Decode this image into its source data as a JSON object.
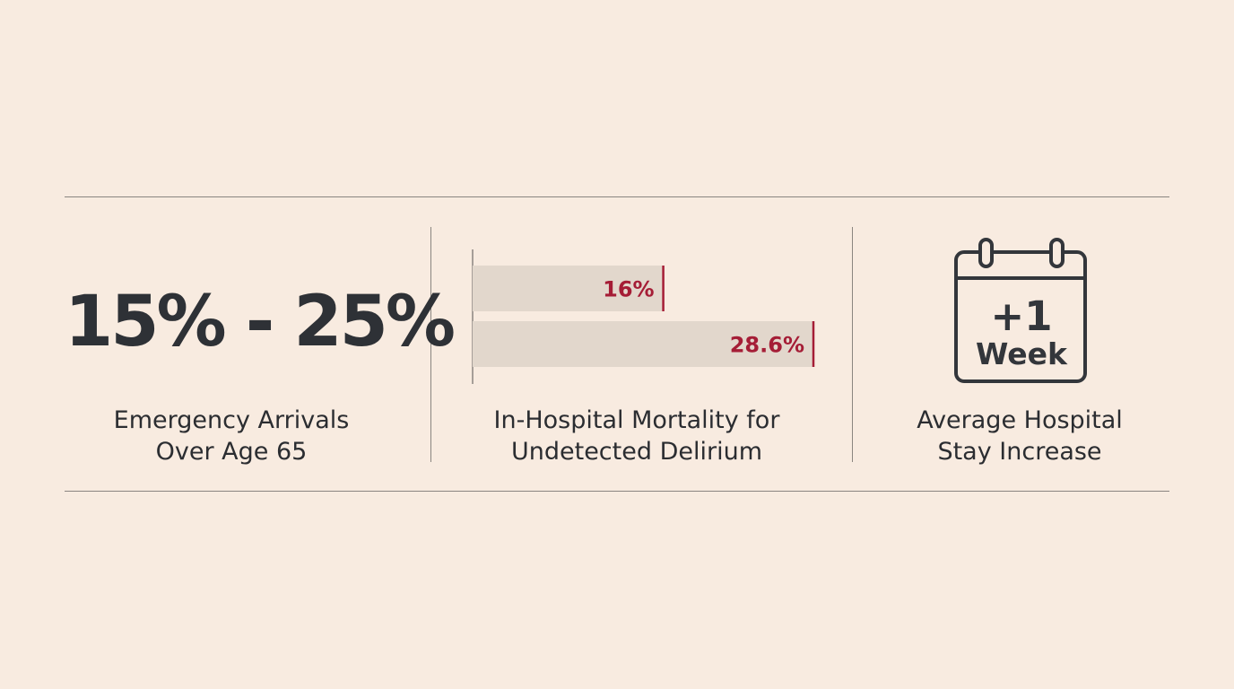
{
  "stats": [
    {
      "value": "15% - 25%",
      "caption_line1": "Emergency Arrivals",
      "caption_line2": "Over Age 65"
    },
    {
      "caption_line1": "In-Hospital Mortality for",
      "caption_line2": "Undetected Delirium"
    },
    {
      "calendar_line1": "+1",
      "calendar_line2": "Week",
      "icon": "calendar-icon",
      "caption_line1": "Average Hospital",
      "caption_line2": "Stay Increase"
    }
  ],
  "chart_data": {
    "type": "bar",
    "orientation": "horizontal",
    "values": [
      16,
      28.6
    ],
    "labels": [
      "16%",
      "28.6%"
    ],
    "xlim": [
      0,
      28.6
    ],
    "grid": false,
    "colors": {
      "bar_fill": "#e2d7cc",
      "label": "#a51d36",
      "end_marker": "#a51d36",
      "axis": "#8a8580"
    }
  },
  "colors": {
    "background": "#f8ebe0",
    "text": "#2e3136",
    "accent": "#a51d36",
    "rule": "#8a8580"
  }
}
